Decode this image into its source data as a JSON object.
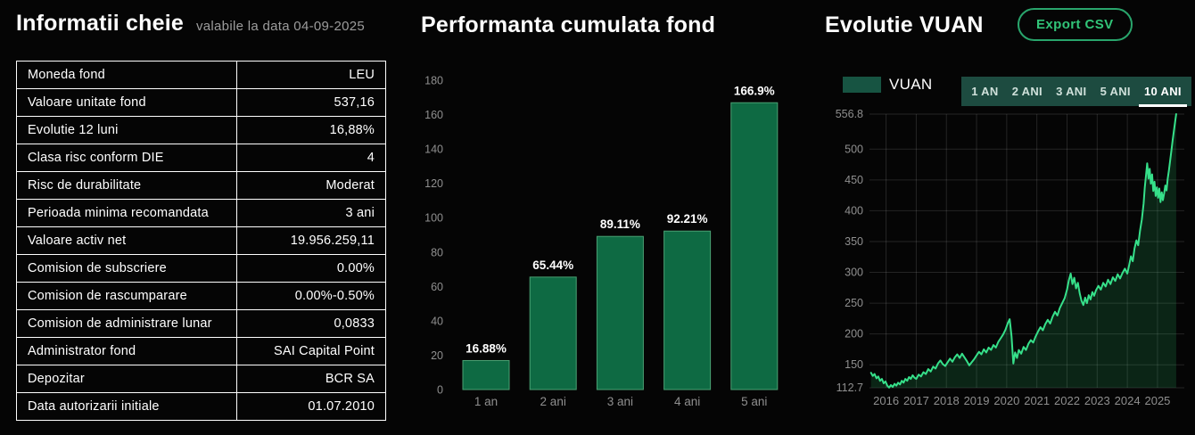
{
  "left_panel": {
    "title": "Informatii cheie",
    "subtitle": "valabile la data 04-09-2025",
    "table": {
      "rows": [
        {
          "label": "Moneda fond",
          "value": "LEU"
        },
        {
          "label": "Valoare unitate fond",
          "value": "537,16"
        },
        {
          "label": "Evolutie 12 luni",
          "value": "16,88%"
        },
        {
          "label": "Clasa risc conform DIE",
          "value": "4"
        },
        {
          "label": "Risc de durabilitate",
          "value": "Moderat"
        },
        {
          "label": "Perioada minima recomandata",
          "value": "3 ani"
        },
        {
          "label": "Valoare activ net",
          "value": "19.956.259,11"
        },
        {
          "label": "Comision de subscriere",
          "value": "0.00%"
        },
        {
          "label": "Comision de rascumparare",
          "value": "0.00%-0.50%"
        },
        {
          "label": "Comision de administrare lunar",
          "value": "0,0833"
        },
        {
          "label": "Administrator fond",
          "value": "SAI Capital Point"
        },
        {
          "label": "Depozitar",
          "value": "BCR SA"
        },
        {
          "label": "Data autorizarii initiale",
          "value": "01.07.2010"
        }
      ]
    }
  },
  "mid_panel": {
    "title": "Performanta cumulata fond"
  },
  "right_panel": {
    "title": "Evolutie VUAN",
    "export_button": {
      "label": "Export CSV"
    },
    "legend_label": "VUAN",
    "range_tabs": [
      {
        "label": "1 AN",
        "active": false
      },
      {
        "label": "2 ANI",
        "active": false
      },
      {
        "label": "3 ANI",
        "active": false
      },
      {
        "label": "5 ANI",
        "active": false
      },
      {
        "label": "10 ANI",
        "active": true
      }
    ]
  },
  "colors": {
    "background": "#050505",
    "bar_fill": "#0e6a43",
    "bar_stroke": "#4aa173",
    "line": "#36e08a",
    "line_area": "rgba(46,204,113,0.16)",
    "axis_text": "#8f8f8f",
    "grid": "rgba(255,255,255,0.13)",
    "tabbar_bg": "#1d4b40",
    "accent_green": "#31c478",
    "legend_swatch": "#175442",
    "table_border": "#ffffff"
  },
  "chart_data": [
    {
      "id": "bar-performance",
      "type": "bar",
      "title": "Performanta cumulata fond",
      "categories": [
        "1 an",
        "2 ani",
        "3 ani",
        "4 ani",
        "5 ani"
      ],
      "values": [
        16.88,
        65.44,
        89.11,
        92.21,
        166.9
      ],
      "value_labels": [
        "16.88%",
        "65.44%",
        "89.11%",
        "92.21%",
        "166.9%"
      ],
      "xlabel": "",
      "ylabel": "",
      "ylim": [
        0,
        180
      ],
      "yticks": [
        0,
        20,
        40,
        60,
        80,
        100,
        120,
        140,
        160,
        180
      ],
      "grid": false,
      "legend": false
    },
    {
      "id": "line-vuan",
      "type": "line",
      "title": "Evolutie VUAN",
      "xlim": [
        2015.45,
        2025.8
      ],
      "ylim": [
        112.7,
        556.8
      ],
      "xticks": [
        2016,
        2017,
        2018,
        2019,
        2020,
        2021,
        2022,
        2023,
        2024,
        2025
      ],
      "yticks": [
        112.7,
        150,
        200,
        250,
        300,
        350,
        400,
        450,
        500,
        556.8
      ],
      "grid": true,
      "legend_position": "top-left",
      "series": [
        {
          "name": "VUAN",
          "points": [
            [
              2015.5,
              137
            ],
            [
              2015.56,
              132
            ],
            [
              2015.62,
              135
            ],
            [
              2015.68,
              128
            ],
            [
              2015.74,
              131
            ],
            [
              2015.8,
              124
            ],
            [
              2015.86,
              127
            ],
            [
              2015.92,
              120
            ],
            [
              2015.98,
              123
            ],
            [
              2016.04,
              116
            ],
            [
              2016.1,
              113
            ],
            [
              2016.16,
              117
            ],
            [
              2016.22,
              114
            ],
            [
              2016.28,
              119
            ],
            [
              2016.34,
              116
            ],
            [
              2016.4,
              121
            ],
            [
              2016.46,
              118
            ],
            [
              2016.52,
              124
            ],
            [
              2016.58,
              121
            ],
            [
              2016.64,
              127
            ],
            [
              2016.7,
              124
            ],
            [
              2016.76,
              130
            ],
            [
              2016.82,
              127
            ],
            [
              2016.88,
              133
            ],
            [
              2016.94,
              129
            ],
            [
              2017.0,
              127
            ],
            [
              2017.08,
              134
            ],
            [
              2017.16,
              131
            ],
            [
              2017.24,
              138
            ],
            [
              2017.32,
              135
            ],
            [
              2017.4,
              143
            ],
            [
              2017.48,
              139
            ],
            [
              2017.56,
              147
            ],
            [
              2017.64,
              144
            ],
            [
              2017.72,
              152
            ],
            [
              2017.8,
              157
            ],
            [
              2017.88,
              151
            ],
            [
              2017.96,
              148
            ],
            [
              2018.04,
              154
            ],
            [
              2018.12,
              160
            ],
            [
              2018.2,
              155
            ],
            [
              2018.28,
              162
            ],
            [
              2018.36,
              167
            ],
            [
              2018.44,
              161
            ],
            [
              2018.52,
              168
            ],
            [
              2018.6,
              162
            ],
            [
              2018.68,
              156
            ],
            [
              2018.76,
              149
            ],
            [
              2018.84,
              154
            ],
            [
              2018.92,
              159
            ],
            [
              2019.0,
              165
            ],
            [
              2019.08,
              171
            ],
            [
              2019.16,
              167
            ],
            [
              2019.24,
              175
            ],
            [
              2019.32,
              170
            ],
            [
              2019.4,
              178
            ],
            [
              2019.48,
              174
            ],
            [
              2019.56,
              182
            ],
            [
              2019.64,
              178
            ],
            [
              2019.72,
              187
            ],
            [
              2019.8,
              193
            ],
            [
              2019.88,
              199
            ],
            [
              2019.96,
              207
            ],
            [
              2020.04,
              218
            ],
            [
              2020.1,
              224
            ],
            [
              2020.16,
              196
            ],
            [
              2020.22,
              152
            ],
            [
              2020.28,
              170
            ],
            [
              2020.34,
              161
            ],
            [
              2020.4,
              174
            ],
            [
              2020.48,
              168
            ],
            [
              2020.56,
              179
            ],
            [
              2020.64,
              174
            ],
            [
              2020.72,
              184
            ],
            [
              2020.8,
              190
            ],
            [
              2020.88,
              186
            ],
            [
              2020.96,
              196
            ],
            [
              2021.04,
              204
            ],
            [
              2021.12,
              211
            ],
            [
              2021.2,
              206
            ],
            [
              2021.28,
              216
            ],
            [
              2021.36,
              223
            ],
            [
              2021.44,
              217
            ],
            [
              2021.52,
              228
            ],
            [
              2021.6,
              236
            ],
            [
              2021.68,
              230
            ],
            [
              2021.76,
              242
            ],
            [
              2021.84,
              250
            ],
            [
              2021.92,
              258
            ],
            [
              2022.0,
              272
            ],
            [
              2022.06,
              287
            ],
            [
              2022.12,
              298
            ],
            [
              2022.18,
              281
            ],
            [
              2022.24,
              291
            ],
            [
              2022.3,
              274
            ],
            [
              2022.36,
              283
            ],
            [
              2022.42,
              266
            ],
            [
              2022.48,
              254
            ],
            [
              2022.54,
              247
            ],
            [
              2022.6,
              259
            ],
            [
              2022.66,
              250
            ],
            [
              2022.72,
              263
            ],
            [
              2022.78,
              256
            ],
            [
              2022.84,
              268
            ],
            [
              2022.9,
              262
            ],
            [
              2022.96,
              271
            ],
            [
              2023.04,
              278
            ],
            [
              2023.12,
              272
            ],
            [
              2023.2,
              283
            ],
            [
              2023.28,
              277
            ],
            [
              2023.36,
              288
            ],
            [
              2023.44,
              281
            ],
            [
              2023.52,
              292
            ],
            [
              2023.6,
              286
            ],
            [
              2023.68,
              297
            ],
            [
              2023.76,
              290
            ],
            [
              2023.84,
              299
            ],
            [
              2023.92,
              306
            ],
            [
              2024.0,
              298
            ],
            [
              2024.06,
              312
            ],
            [
              2024.12,
              326
            ],
            [
              2024.18,
              318
            ],
            [
              2024.24,
              339
            ],
            [
              2024.3,
              352
            ],
            [
              2024.36,
              344
            ],
            [
              2024.42,
              367
            ],
            [
              2024.48,
              386
            ],
            [
              2024.54,
              412
            ],
            [
              2024.58,
              438
            ],
            [
              2024.62,
              458
            ],
            [
              2024.66,
              477
            ],
            [
              2024.7,
              452
            ],
            [
              2024.74,
              468
            ],
            [
              2024.78,
              444
            ],
            [
              2024.82,
              459
            ],
            [
              2024.86,
              432
            ],
            [
              2024.9,
              447
            ],
            [
              2024.94,
              424
            ],
            [
              2024.98,
              438
            ],
            [
              2025.02,
              421
            ],
            [
              2025.06,
              436
            ],
            [
              2025.1,
              414
            ],
            [
              2025.14,
              430
            ],
            [
              2025.18,
              417
            ],
            [
              2025.22,
              428
            ],
            [
              2025.26,
              441
            ],
            [
              2025.3,
              433
            ],
            [
              2025.34,
              452
            ],
            [
              2025.38,
              466
            ],
            [
              2025.42,
              481
            ],
            [
              2025.46,
              497
            ],
            [
              2025.5,
              514
            ],
            [
              2025.54,
              528
            ],
            [
              2025.58,
              543
            ],
            [
              2025.62,
              556.8
            ]
          ]
        }
      ]
    }
  ]
}
